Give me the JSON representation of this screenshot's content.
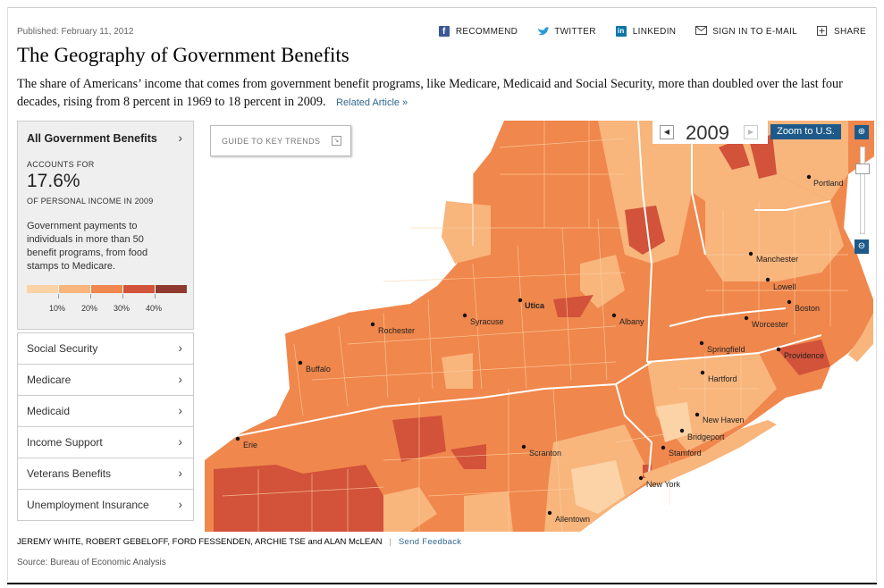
{
  "header": {
    "published": "Published: February 11, 2012",
    "share": [
      {
        "label": "RECOMMEND",
        "icon": "facebook-icon"
      },
      {
        "label": "TWITTER",
        "icon": "twitter-icon"
      },
      {
        "label": "LINKEDIN",
        "icon": "linkedin-icon"
      },
      {
        "label": "SIGN IN TO E-MAIL",
        "icon": "envelope-icon"
      },
      {
        "label": "SHARE",
        "icon": "plus-box-icon"
      }
    ]
  },
  "article": {
    "title": "The Geography of Government Benefits",
    "summary": "The share of Americans’ income that comes from government benefit programs, like Medicare, Medicaid and Social Security, more than doubled over the last four decades, rising from 8 percent in 1969 to 18 percent in 2009.",
    "related_link": "Related Article »"
  },
  "sidebar": {
    "active": {
      "title": "All Government Benefits",
      "accounts_label": "ACCOUNTS FOR",
      "value": "17.6%",
      "sub_label": "OF PERSONAL INCOME IN 2009",
      "description": "Government payments to individuals in more than 50 benefit programs, from food stamps to Medicare."
    },
    "legend": {
      "colors": [
        "#fbd3a6",
        "#f8b57c",
        "#f0874c",
        "#d2523a",
        "#8e3a2e"
      ],
      "labels": [
        "10%",
        "20%",
        "30%",
        "40%"
      ]
    },
    "categories": [
      "Social Security",
      "Medicare",
      "Medicaid",
      "Income Support",
      "Veterans Benefits",
      "Unemployment Insurance"
    ]
  },
  "map_controls": {
    "guide": "GUIDE TO KEY TRENDS",
    "year": "2009",
    "zoom_us": "Zoom to U.S."
  },
  "map": {
    "colors": {
      "base": "#f0874c",
      "light": "#f8b57c",
      "lighter": "#fbd3a6",
      "dark": "#d2523a"
    },
    "cities": [
      "Portland",
      "Manchester",
      "Lowell",
      "Boston",
      "Worcester",
      "Providence",
      "Springfield",
      "Hartford",
      "New Haven",
      "Bridgeport",
      "Stamford",
      "New York",
      "Allentown",
      "Scranton",
      "Erie",
      "Buffalo",
      "Rochester",
      "Syracuse",
      "Utica",
      "Albany"
    ]
  },
  "footer": {
    "credits": "JEREMY WHITE, ROBERT GEBELOFF, FORD FESSENDEN, ARCHIE TSE and ALAN McLEAN",
    "feedback": "Send Feedback",
    "source": "Source: Bureau of Economic Analysis"
  }
}
